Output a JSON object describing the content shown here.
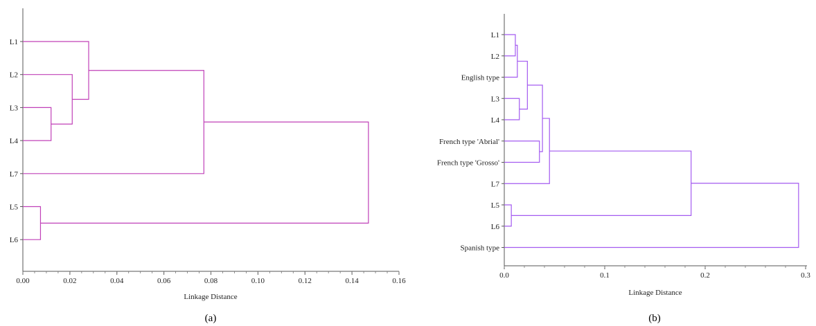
{
  "chart_data": [
    {
      "type": "dendrogram",
      "panel_label": "(a)",
      "xlabel": "Linkage Distance",
      "xlim": [
        0,
        0.16
      ],
      "ticks": [
        "0.00",
        "0.02",
        "0.04",
        "0.06",
        "0.08",
        "0.10",
        "0.12",
        "0.14",
        "0.16"
      ],
      "leaves": [
        "L1",
        "L2",
        "L3",
        "L4",
        "L7",
        "L5",
        "L6"
      ],
      "merges": [
        {
          "a": "L3",
          "b": "L4",
          "distance": 0.012
        },
        {
          "a": "L2",
          "b": "L3+L4",
          "distance": 0.021
        },
        {
          "a": "L1",
          "b": "L2+L3+L4",
          "distance": 0.028
        },
        {
          "a": "L1..L4",
          "b": "L7",
          "distance": 0.077
        },
        {
          "a": "L5",
          "b": "L6",
          "distance": 0.0075
        },
        {
          "a": "L1..L7",
          "b": "L5+L6",
          "distance": 0.147
        }
      ],
      "colors": {
        "link": "#c040b8"
      }
    },
    {
      "type": "dendrogram",
      "panel_label": "(b)",
      "xlabel": "Linkage Distance",
      "xlim": [
        0,
        0.3
      ],
      "ticks": [
        "0.0",
        "0.1",
        "0.2",
        "0.3"
      ],
      "leaves": [
        "L1",
        "L2",
        "English type",
        "L3",
        "L4",
        "French type 'Abrial'",
        "French type 'Grosso'",
        "L7",
        "L5",
        "L6",
        "Spanish type"
      ],
      "merges": [
        {
          "a": "L1",
          "b": "L2",
          "distance": 0.011
        },
        {
          "a": "L1+L2",
          "b": "English type",
          "distance": 0.013
        },
        {
          "a": "L3",
          "b": "L4",
          "distance": 0.015
        },
        {
          "a": "L1+L2+English",
          "b": "L3+L4",
          "distance": 0.023
        },
        {
          "a": "French type 'Abrial'",
          "b": "French type 'Grosso'",
          "distance": 0.035
        },
        {
          "a": "L1..L4+English",
          "b": "French types",
          "distance": 0.038
        },
        {
          "a": "group",
          "b": "L7",
          "distance": 0.045
        },
        {
          "a": "L5",
          "b": "L6",
          "distance": 0.007
        },
        {
          "a": "group+L7",
          "b": "L5+L6",
          "distance": 0.186
        },
        {
          "a": "all",
          "b": "Spanish type",
          "distance": 0.293
        }
      ],
      "colors": {
        "link": "#a35af0"
      }
    }
  ]
}
